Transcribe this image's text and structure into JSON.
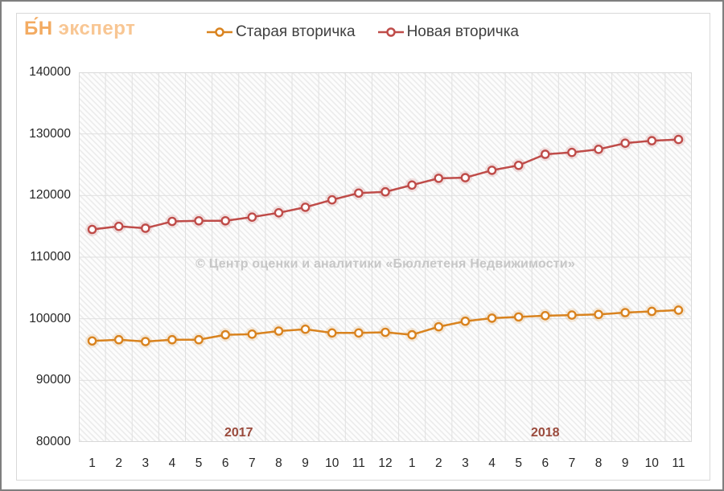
{
  "logo": {
    "primary": "Б́Н",
    "secondary": "эксперт"
  },
  "legend": [
    {
      "label": "Старая вторичка",
      "color": "#d9831f"
    },
    {
      "label": "Новая вторичка",
      "color": "#bf4c49"
    }
  ],
  "watermark": "© Центр оценки и аналитики «Бюллетеня Недвижимости»",
  "colors": {
    "grid": "#e0e0e0",
    "plot_border": "#d9d9d9",
    "hatch": "#eaeaea",
    "axis_text": "#262626",
    "year_label": "#9a4a3c"
  },
  "chart_data": {
    "type": "line",
    "x_categories": [
      "1",
      "2",
      "3",
      "4",
      "5",
      "6",
      "7",
      "8",
      "9",
      "10",
      "11",
      "12",
      "1",
      "2",
      "3",
      "4",
      "5",
      "6",
      "7",
      "8",
      "9",
      "10",
      "11"
    ],
    "year_groups": [
      {
        "label": "2017",
        "months": 12
      },
      {
        "label": "2018",
        "months": 11
      }
    ],
    "ylim": [
      80000,
      140000
    ],
    "yticks": [
      80000,
      90000,
      100000,
      110000,
      120000,
      130000,
      140000
    ],
    "grid": true,
    "legend_position": "top",
    "series": [
      {
        "name": "Старая вторичка",
        "color": "#d9831f",
        "values": [
          96400,
          96600,
          96300,
          96600,
          96600,
          97400,
          97500,
          98000,
          98300,
          97700,
          97700,
          97800,
          97400,
          98700,
          99600,
          100100,
          100300,
          100500,
          100600,
          100700,
          101000,
          101200,
          101400
        ]
      },
      {
        "name": "Новая вторичка",
        "color": "#bf4c49",
        "values": [
          114500,
          115000,
          114700,
          115800,
          115900,
          115900,
          116500,
          117200,
          118100,
          119300,
          120400,
          120600,
          121700,
          122800,
          122900,
          124100,
          124900,
          126700,
          127000,
          127500,
          128500,
          128900,
          129100
        ]
      }
    ]
  }
}
